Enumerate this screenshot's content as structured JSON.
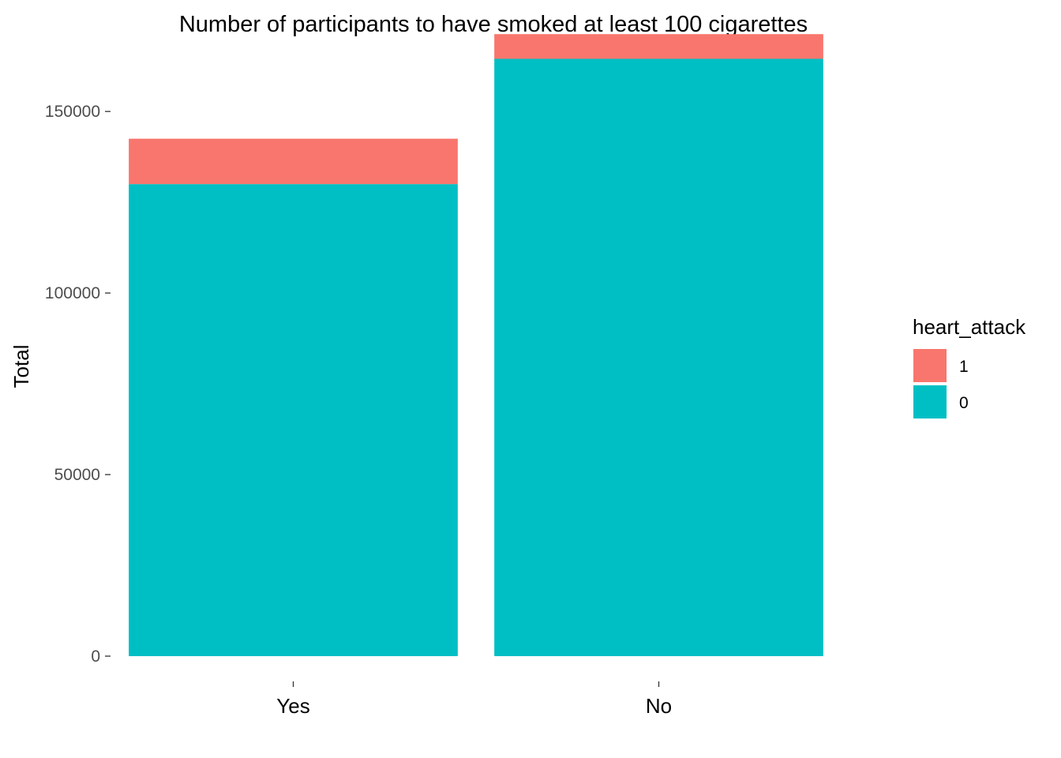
{
  "chart_data": {
    "type": "bar",
    "stacked": true,
    "title": "Number of participants to have smoked at least 100 cigarettes",
    "xlabel": "",
    "ylabel": "Total",
    "categories": [
      "Yes",
      "No"
    ],
    "series": [
      {
        "name": "0",
        "values": [
          130000,
          164500
        ],
        "color": "#00BFC4"
      },
      {
        "name": "1",
        "values": [
          12500,
          6800
        ],
        "color": "#F8766D"
      }
    ],
    "ylim": [
      0,
      172000
    ],
    "yticks": [
      0,
      50000,
      100000,
      150000
    ],
    "ytick_labels": [
      "0",
      "50000",
      "100000",
      "150000"
    ],
    "grid": false,
    "legend": {
      "title": "heart_attack",
      "position": "right",
      "entries": [
        {
          "label": "1",
          "color": "#F8766D"
        },
        {
          "label": "0",
          "color": "#00BFC4"
        }
      ]
    }
  }
}
